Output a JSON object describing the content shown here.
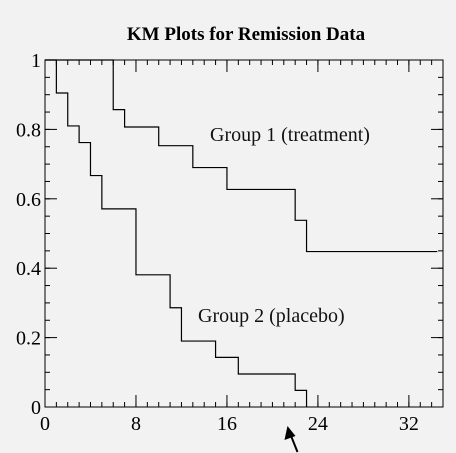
{
  "chart_data": {
    "type": "line",
    "step": true,
    "title": "KM  Plots for Remission Data",
    "xlabel": "",
    "ylabel": "",
    "xlim": [
      0,
      35
    ],
    "ylim": [
      0,
      1
    ],
    "xticks": [
      0,
      8,
      16,
      24,
      32
    ],
    "yticks": [
      0,
      0.2,
      0.4,
      0.6,
      0.8,
      1
    ],
    "ytick_labels": [
      "0",
      "0.2",
      "0.4",
      "0.6",
      "0.8",
      "1"
    ],
    "minor_x_step": 1,
    "minor_y_step": 0.05,
    "grid": false,
    "series": [
      {
        "name": "Group 1 (treatment)",
        "x": [
          0,
          6,
          7,
          10,
          13,
          16,
          22,
          23,
          34.5
        ],
        "y": [
          1.0,
          0.857,
          0.807,
          0.753,
          0.69,
          0.627,
          0.538,
          0.448,
          0.448
        ]
      },
      {
        "name": "Group 2 (placebo)",
        "x": [
          0,
          1,
          2,
          3,
          4,
          5,
          8,
          11,
          12,
          15,
          17,
          22,
          23
        ],
        "y": [
          1.0,
          0.905,
          0.81,
          0.762,
          0.667,
          0.571,
          0.381,
          0.286,
          0.19,
          0.143,
          0.095,
          0.048,
          0.0
        ]
      }
    ],
    "annotations": [
      {
        "text": "Group 1 (treatment)",
        "x": 14.5,
        "y": 0.79
      },
      {
        "text": "Group 2 (placebo)",
        "x": 13.5,
        "y": 0.25
      }
    ],
    "arrow_at_x": 21.5
  }
}
